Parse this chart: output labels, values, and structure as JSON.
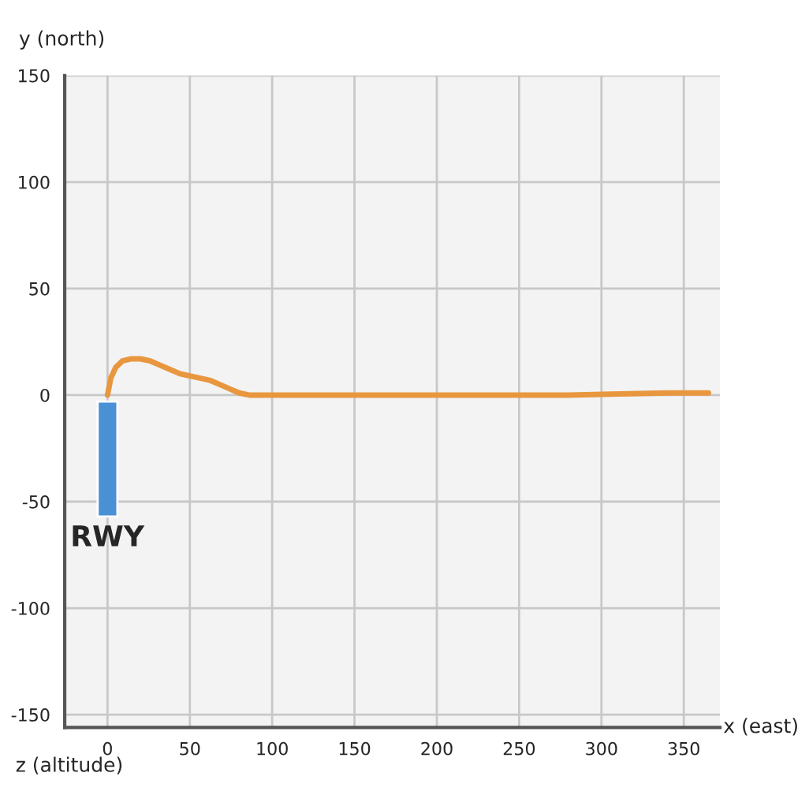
{
  "chart_data": {
    "type": "line",
    "xlabel": "x (east)",
    "ylabel": "y (north)",
    "series": [
      {
        "color": "#e8973f",
        "x": [
          0,
          2,
          5,
          9,
          14,
          20,
          26,
          32,
          38,
          44,
          50,
          56,
          62,
          68,
          74,
          80,
          86,
          90,
          120,
          200,
          280,
          340,
          365
        ],
        "values": [
          0,
          8,
          13,
          16,
          17,
          17,
          16,
          14,
          12,
          10,
          9,
          8,
          7,
          5,
          3,
          1,
          0,
          0,
          0,
          0,
          0,
          1,
          1
        ]
      },
      {
        "type": "bar",
        "color": "#4a90d4",
        "x": [
          0
        ],
        "base": [
          -57
        ],
        "values": [
          54
        ]
      }
    ],
    "annotations": [
      "RWY",
      "z (altitude)"
    ],
    "xlim": [
      -26,
      372
    ],
    "ylim": [
      -156,
      150
    ],
    "xticks": [
      0,
      50,
      100,
      150,
      200,
      250,
      300,
      350
    ],
    "yticks": [
      -150,
      -100,
      -50,
      0,
      50,
      100,
      150
    ],
    "grid": true
  }
}
